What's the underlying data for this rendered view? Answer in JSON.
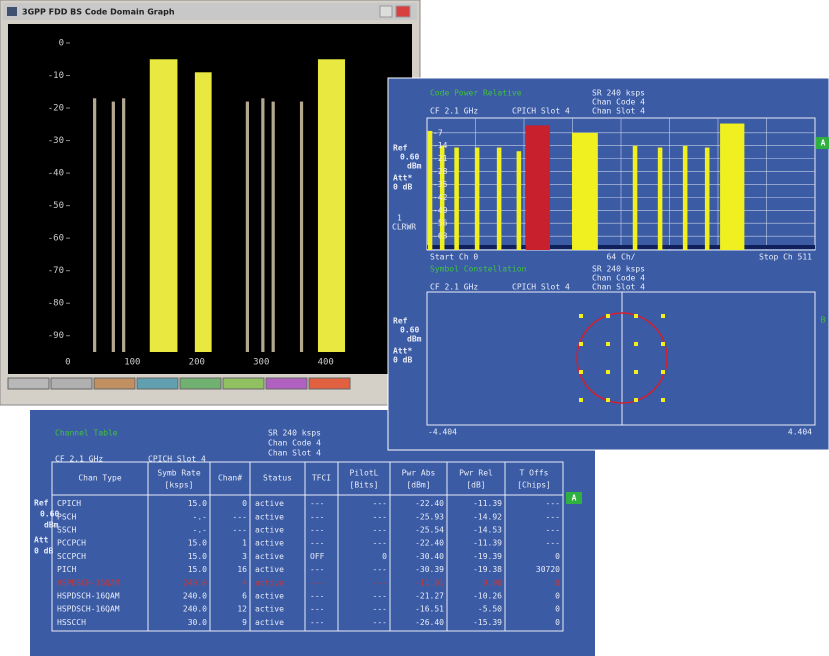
{
  "window": {
    "title": "3GPP FDD BS Code Domain Graph",
    "ylim": [
      -95,
      4
    ],
    "yticks": [
      0,
      -10,
      -20,
      -30,
      -40,
      -50,
      -60,
      -70,
      -80,
      -90
    ],
    "xlim": [
      -20,
      492
    ],
    "xticks": [
      0,
      100,
      200,
      300,
      400
    ],
    "bars": [
      {
        "channel": 39,
        "width": 5,
        "value": -17,
        "color": "#b4a890"
      },
      {
        "channel": 68,
        "width": 5,
        "value": -18,
        "color": "#b4a890"
      },
      {
        "channel": 84,
        "width": 5,
        "value": -17,
        "color": "#b4a890"
      },
      {
        "channel": 127,
        "width": 43,
        "value": -5,
        "color": "#e8e840"
      },
      {
        "channel": 197,
        "width": 26,
        "value": -9,
        "color": "#e8e840"
      },
      {
        "channel": 276,
        "width": 5,
        "value": -18,
        "color": "#b4a890"
      },
      {
        "channel": 300,
        "width": 5,
        "value": -17,
        "color": "#b4a890"
      },
      {
        "channel": 316,
        "width": 5,
        "value": -18,
        "color": "#b4a890"
      },
      {
        "channel": 360,
        "width": 5,
        "value": -18,
        "color": "#b4a890"
      },
      {
        "channel": 388,
        "width": 42,
        "value": -5,
        "color": "#e8e840"
      }
    ]
  },
  "code_power": {
    "title": "Code Power Relative",
    "sr": "SR 240 ksps",
    "chan_code": "Chan Code  4",
    "chan_slot": "Chan Slot  4",
    "cf": "CF 2.1 GHz",
    "slot": "CPICH Slot  4",
    "ref": "Ref",
    "ref_value": "0.60",
    "ref_unit": "dBm",
    "att": "Att*",
    "att_value": "0 dB",
    "trace": "1",
    "trace_mode": "CLRWR",
    "marker": "A",
    "start": "Start Ch 0",
    "div": "64 Ch/",
    "stop": "Stop Ch 511",
    "ylim": [
      -70.5,
      1
    ],
    "yticks": [
      -7,
      -14,
      -21,
      -28,
      -35,
      -42,
      -49,
      -56,
      -63
    ],
    "xlim": [
      0,
      511
    ],
    "bars": [
      {
        "channel": 1,
        "width": 6,
        "value": -6,
        "color": "#f0f020"
      },
      {
        "channel": 17,
        "width": 6,
        "value": -14,
        "color": "#f0f020"
      },
      {
        "channel": 36,
        "width": 6,
        "value": -15,
        "color": "#f0f020"
      },
      {
        "channel": 63,
        "width": 6,
        "value": -15,
        "color": "#f0f020"
      },
      {
        "channel": 92,
        "width": 6,
        "value": -15,
        "color": "#f0f020"
      },
      {
        "channel": 118,
        "width": 6,
        "value": -17,
        "color": "#f0f020"
      },
      {
        "channel": 130,
        "width": 32,
        "value": -3,
        "color": "#c8202c"
      },
      {
        "channel": 191,
        "width": 34,
        "value": -7,
        "color": "#f0f020"
      },
      {
        "channel": 271,
        "width": 6,
        "value": -14,
        "color": "#f0f020"
      },
      {
        "channel": 304,
        "width": 6,
        "value": -15,
        "color": "#f0f020"
      },
      {
        "channel": 337,
        "width": 6,
        "value": -14,
        "color": "#f0f020"
      },
      {
        "channel": 366,
        "width": 6,
        "value": -15,
        "color": "#f0f020"
      },
      {
        "channel": 386,
        "width": 32,
        "value": -2,
        "color": "#f0f020"
      }
    ]
  },
  "constellation": {
    "title": "Symbol Constellation",
    "sr": "SR 240 ksps",
    "chan_code": "Chan Code  4",
    "chan_slot": "Chan Slot  4",
    "cf": "CF 2.1 GHz",
    "slot": "CPICH Slot  4",
    "ref": "Ref",
    "ref_value": "0.60",
    "ref_unit": "dBm",
    "att": "Att*",
    "att_value": "0 dB",
    "marker": "B",
    "x_min_label": "-4.404",
    "x_max_label": "4.404"
  },
  "channel_table": {
    "title": "Channel Table",
    "sr": "SR 240 ksps",
    "chan_code": "Chan Code  4",
    "chan_slot": "Chan Slot  4",
    "cf": "CF 2.1 GHz",
    "slot": "CPICH Slot  4",
    "ref": "Ref",
    "ref_value": "0.60",
    "ref_unit": "dBm",
    "att": "Att",
    "att_value": "0 dB",
    "marker": "A",
    "columns": [
      {
        "name": "Chan Type"
      },
      {
        "name": "Symb Rate",
        "unit": "[ksps]"
      },
      {
        "name": "Chan#"
      },
      {
        "name": "Status"
      },
      {
        "name": "TFCI"
      },
      {
        "name": "PilotL",
        "unit": "[Bits]"
      },
      {
        "name": "Pwr Abs",
        "unit": "[dBm]"
      },
      {
        "name": "Pwr Rel",
        "unit": "[dB]"
      },
      {
        "name": "T Offs",
        "unit": "[Chips]"
      }
    ],
    "rows": [
      [
        "CPICH",
        "15.0",
        "0",
        "active",
        "---",
        "---",
        "-22.40",
        "-11.39",
        "---"
      ],
      [
        "PSCH",
        "-.-",
        "---",
        "active",
        "---",
        "---",
        "-25.93",
        "-14.92",
        "---"
      ],
      [
        "SSCH",
        "-.-",
        "---",
        "active",
        "---",
        "---",
        "-25.54",
        "-14.53",
        "---"
      ],
      [
        "PCCPCH",
        "15.0",
        "1",
        "active",
        "---",
        "---",
        "-22.40",
        "-11.39",
        "---"
      ],
      [
        "SCCPCH",
        "15.0",
        "3",
        "active",
        "OFF",
        "0",
        "-30.40",
        "-19.39",
        "0"
      ],
      [
        "PICH",
        "15.0",
        "16",
        "active",
        "---",
        "---",
        "-30.39",
        "-19.38",
        "30720"
      ],
      [
        "HSPDSCH-16QAM",
        "240.0",
        "4",
        "active",
        "---",
        "---",
        "-11.01",
        "0.00",
        "0"
      ],
      [
        "HSPDSCH-16QAM",
        "240.0",
        "6",
        "active",
        "---",
        "---",
        "-21.27",
        "-10.26",
        "0"
      ],
      [
        "HSPDSCH-16QAM",
        "240.0",
        "12",
        "active",
        "---",
        "---",
        "-16.51",
        "-5.50",
        "0"
      ],
      [
        "HSSCCH",
        "30.0",
        "9",
        "active",
        "---",
        "---",
        "-26.40",
        "-15.39",
        "0"
      ]
    ]
  }
}
